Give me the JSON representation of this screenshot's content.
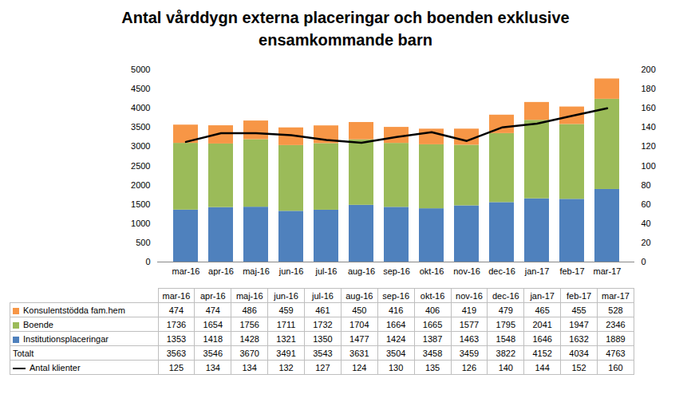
{
  "chart_data": {
    "type": "bar",
    "title": "Antal vårddygn externa placeringar och boenden exklusive ensamkommande barn",
    "stacked": true,
    "grid": false,
    "categories": [
      "mar-16",
      "apr-16",
      "maj-16",
      "jun-16",
      "jul-16",
      "aug-16",
      "sep-16",
      "okt-16",
      "nov-16",
      "dec-16",
      "jan-17",
      "feb-17",
      "mar-17"
    ],
    "series": [
      {
        "name": "Konsulentstödda fam.hem",
        "color": "#f79646",
        "values": [
          474,
          474,
          486,
          459,
          461,
          450,
          416,
          406,
          419,
          479,
          465,
          455,
          528
        ]
      },
      {
        "name": "Boende",
        "color": "#9bbb59",
        "values": [
          1736,
          1654,
          1756,
          1711,
          1732,
          1704,
          1664,
          1665,
          1577,
          1795,
          2041,
          1947,
          2346
        ]
      },
      {
        "name": "Institutionsplaceringar",
        "color": "#4f81bd",
        "values": [
          1353,
          1418,
          1428,
          1321,
          1350,
          1477,
          1424,
          1387,
          1463,
          1548,
          1646,
          1632,
          1889
        ]
      },
      {
        "name": "Antal klienter",
        "type": "line",
        "axis": "y2",
        "color": "#000000",
        "values": [
          125,
          134,
          134,
          132,
          127,
          124,
          130,
          135,
          126,
          140,
          144,
          152,
          160
        ]
      }
    ],
    "totals": {
      "name": "Totalt",
      "values": [
        3563,
        3546,
        3670,
        3491,
        3543,
        3631,
        3504,
        3458,
        3459,
        3822,
        4152,
        4034,
        4763
      ]
    },
    "ylim": [
      0,
      5000
    ],
    "yticks": [
      0,
      500,
      1000,
      1500,
      2000,
      2500,
      3000,
      3500,
      4000,
      4500,
      5000
    ],
    "y2lim": [
      0,
      200
    ],
    "y2ticks": [
      0,
      20,
      40,
      60,
      80,
      100,
      120,
      140,
      160,
      180,
      200
    ]
  }
}
